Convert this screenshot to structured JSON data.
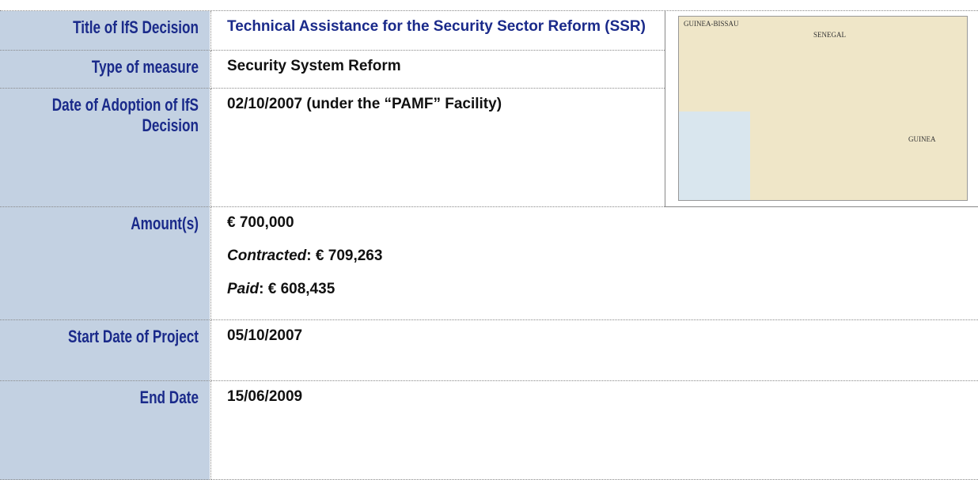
{
  "table": {
    "rows": [
      {
        "label": "Title of IfS Decision",
        "lines": [
          {
            "text": "Technical Assistance for the Security Sector Reform (SSR)"
          }
        ]
      },
      {
        "label": "Type of measure",
        "lines": [
          {
            "text": "Security System Reform"
          }
        ]
      },
      {
        "label": "Date of Adoption of IfS Decision",
        "lines": [
          {
            "text": "02/10/2007 (under the “PAMF” Facility)"
          }
        ]
      },
      {
        "label": "Amount(s)",
        "lines": [
          {
            "text": "€ 700,000"
          },
          {
            "prefix": "Contracted",
            "text": ": € 709,263"
          },
          {
            "prefix": "Paid",
            "text": ": € 608,435"
          }
        ]
      },
      {
        "label": "Start Date of Project",
        "lines": [
          {
            "text": "05/10/2007"
          }
        ]
      },
      {
        "label": "End Date",
        "lines": [
          {
            "text": "15/06/2009"
          }
        ]
      }
    ]
  },
  "map": {
    "labels": [
      "GUINEA-BISSAU",
      "SENEGAL",
      "GUINEA"
    ]
  }
}
